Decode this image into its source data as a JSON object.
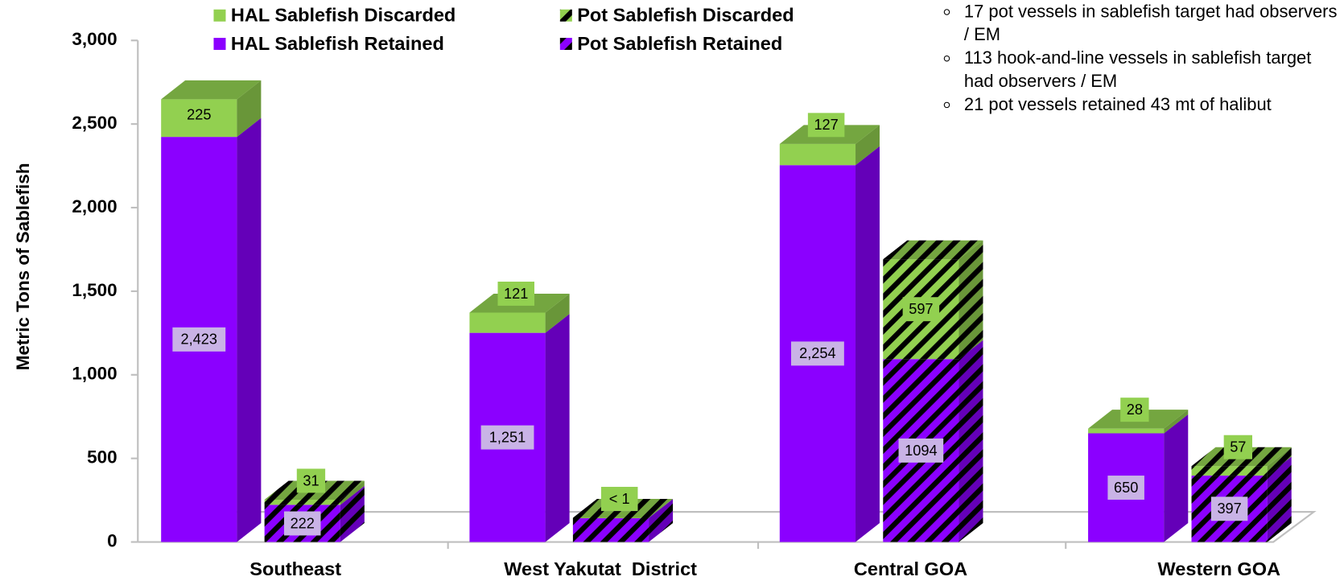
{
  "chart_data": {
    "type": "bar3d",
    "y_label": "Metric Tons of Sablefish",
    "categories": [
      "Southeast",
      "West Yakutat  District",
      "Central GOA",
      "Western GOA"
    ],
    "series": [
      {
        "name": "HAL Sablefish Retained",
        "color": "#8b00ff",
        "label_color": "#c9b3e6",
        "hatch": false,
        "values": [
          2423,
          1251,
          2254,
          650
        ],
        "value_labels": [
          "2,423",
          "1,251",
          "2,254",
          "650"
        ]
      },
      {
        "name": "HAL Sablefish Discarded",
        "color": "#92d050",
        "label_color": "#92d050",
        "hatch": false,
        "values": [
          225,
          121,
          127,
          28
        ]
      },
      {
        "name": "Pot Sablefish Retained",
        "color": "#8b00ff",
        "label_color": "#c9b3e6",
        "hatch": true,
        "values": [
          222,
          144,
          1094,
          397
        ]
      },
      {
        "name": "Pot Sablefish Discarded",
        "color": "#92d050",
        "label_color": "#92d050",
        "hatch": true,
        "values": [
          31,
          0.5,
          597,
          57
        ],
        "value_labels": [
          "31",
          "< 1",
          "597",
          "57"
        ]
      }
    ],
    "ylim": [
      0,
      3000
    ],
    "yticks": [
      0,
      {
        "value": 500,
        "label": "500"
      },
      {
        "value": 1000,
        "label": "1,000"
      },
      {
        "value": 1500,
        "label": "1,500"
      },
      {
        "value": 2000,
        "label": "2,000"
      },
      {
        "value": 2500,
        "label": "2,500"
      },
      {
        "value": 3000,
        "label": "3,000"
      }
    ],
    "notes": [
      "17 pot vessels in sablefish target had observers / EM",
      "113 hook-and-line vessels in sablefish target had observers / EM",
      "21 pot vessels retained 43 mt of halibut"
    ]
  }
}
